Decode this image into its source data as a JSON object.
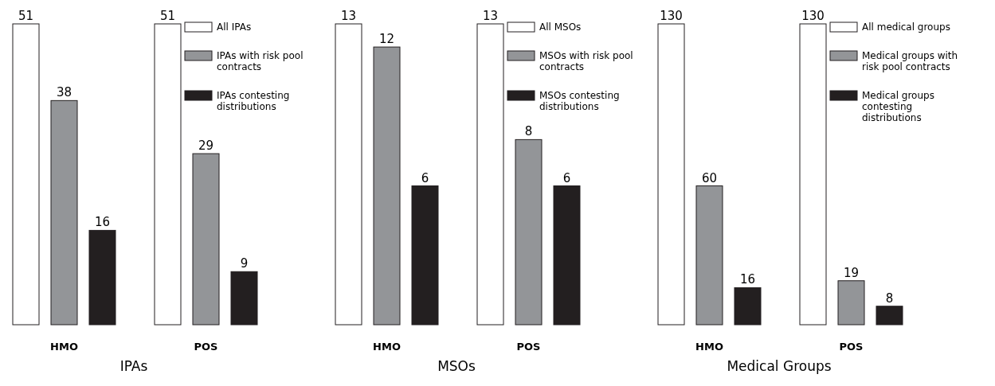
{
  "chart_data": [
    {
      "type": "bar",
      "xlabel": "IPAs",
      "categories": [
        "HMO",
        "POS"
      ],
      "data_labels": true,
      "legend": "right",
      "series": [
        {
          "name": "All IPAs",
          "color": "#ffffff",
          "values": [
            51,
            51
          ]
        },
        {
          "name": "IPAs with risk pool contracts",
          "color": "#939598",
          "values": [
            38,
            29
          ]
        },
        {
          "name": "IPAs contesting distributions",
          "color": "#231f20",
          "values": [
            16,
            9
          ]
        }
      ]
    },
    {
      "type": "bar",
      "xlabel": "MSOs",
      "categories": [
        "HMO",
        "POS"
      ],
      "data_labels": true,
      "legend": "right",
      "series": [
        {
          "name": "All MSOs",
          "color": "#ffffff",
          "values": [
            13,
            13
          ]
        },
        {
          "name": "MSOs with risk pool contracts",
          "color": "#939598",
          "values": [
            12,
            8
          ]
        },
        {
          "name": "MSOs contesting distributions",
          "color": "#231f20",
          "values": [
            6,
            6
          ]
        }
      ]
    },
    {
      "type": "bar",
      "xlabel": "Medical Groups",
      "categories": [
        "HMO",
        "POS"
      ],
      "data_labels": true,
      "legend": "right",
      "series": [
        {
          "name": "All medical groups",
          "color": "#ffffff",
          "values": [
            130,
            130
          ]
        },
        {
          "name": "Medical groups with risk pool contracts",
          "color": "#939598",
          "values": [
            60,
            19
          ]
        },
        {
          "name": "Medical groups contesting distributions",
          "color": "#231f20",
          "values": [
            16,
            8
          ]
        }
      ]
    }
  ]
}
